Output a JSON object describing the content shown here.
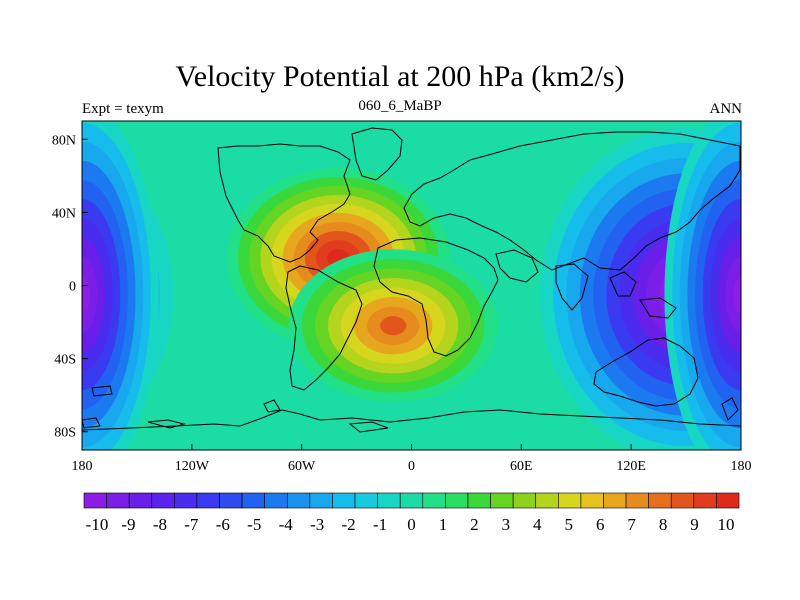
{
  "title": "Velocity Potential at 200 hPa (km2/s)",
  "subtitle_left": "Expt = texym",
  "subtitle_center": "060_6_MaBP",
  "subtitle_right": "ANN",
  "map": {
    "lon_range": [
      -180,
      180
    ],
    "lat_range": [
      -90,
      90
    ],
    "x_ticks": [
      {
        "value": -180,
        "label": "180"
      },
      {
        "value": -120,
        "label": "120W"
      },
      {
        "value": -60,
        "label": "60W"
      },
      {
        "value": 0,
        "label": "0"
      },
      {
        "value": 60,
        "label": "60E"
      },
      {
        "value": 120,
        "label": "120E"
      },
      {
        "value": 180,
        "label": "180"
      }
    ],
    "y_ticks": [
      {
        "value": 80,
        "label": "80N"
      },
      {
        "value": 40,
        "label": "40N"
      },
      {
        "value": 0,
        "label": "0"
      },
      {
        "value": -40,
        "label": "40S"
      },
      {
        "value": -80,
        "label": "80S"
      }
    ],
    "field_centers": [
      {
        "lon": -40,
        "lat": 15,
        "value": 9.5,
        "spread_lon": 32,
        "spread_lat": 26
      },
      {
        "lon": -10,
        "lat": -22,
        "value": 7.5,
        "spread_lon": 30,
        "spread_lat": 22
      },
      {
        "lon": 150,
        "lat": -5,
        "value": -10.5,
        "spread_lon": 42,
        "spread_lat": 48
      },
      {
        "lon": -180,
        "lat": -5,
        "value": -9.5,
        "spread_lon": 22,
        "spread_lat": 55
      }
    ]
  },
  "colorbar": {
    "levels": [
      -10,
      -9,
      -8,
      -7,
      -6,
      -5,
      -4,
      -3,
      -2,
      -1,
      0,
      1,
      2,
      3,
      4,
      5,
      6,
      7,
      8,
      9,
      10
    ],
    "labels": [
      "-10",
      "-9",
      "-8",
      "-7",
      "-6",
      "-5",
      "-4",
      "-3",
      "-2",
      "-1",
      "0",
      "1",
      "2",
      "3",
      "4",
      "5",
      "6",
      "7",
      "8",
      "9",
      "10"
    ],
    "colors": [
      "#8c1ee6",
      "#7a1ee8",
      "#6a1eea",
      "#5a22ec",
      "#4a2cee",
      "#3a3af0",
      "#2c4cf0",
      "#2262f0",
      "#1c7af0",
      "#1a92f0",
      "#18a8ee",
      "#16bcec",
      "#16ccde",
      "#18d6c4",
      "#1cdca6",
      "#22e088",
      "#2ade62",
      "#3ad83a",
      "#66d422",
      "#8ed21e",
      "#b4d41e",
      "#d6d61e",
      "#e6c21e",
      "#e6a61e",
      "#e68c1e",
      "#e4701e",
      "#e2561e",
      "#e03c1e",
      "#de2a1a"
    ]
  }
}
